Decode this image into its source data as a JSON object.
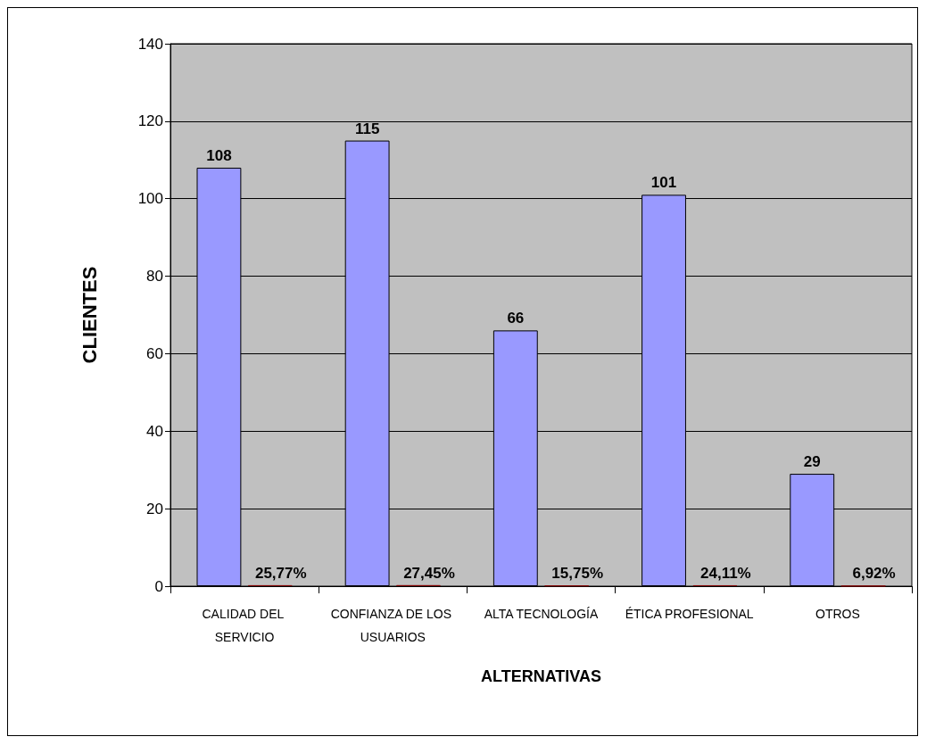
{
  "chart_data": {
    "type": "bar",
    "xlabel": "ALTERNATIVAS",
    "ylabel": "CLIENTES",
    "categories": [
      "CALIDAD DEL SERVICIO",
      "CONFIANZA DE LOS USUARIOS",
      "ALTA TECNOLOGÍA",
      "ÉTICA PROFESIONAL",
      "OTROS"
    ],
    "series": [
      {
        "color": "#9999ff",
        "values": [
          108,
          115,
          66,
          101,
          29
        ],
        "data_labels": true
      },
      {
        "color": "#800000",
        "values": [
          0.2577,
          0.2745,
          0.1575,
          0.2411,
          0.0692
        ],
        "value_labels": [
          "25,77%",
          "27,45%",
          "15,75%",
          "24,11%",
          "6,92%"
        ]
      }
    ],
    "ylim": [
      0,
      140
    ],
    "yticks": [
      0,
      20,
      40,
      60,
      80,
      100,
      120,
      140
    ],
    "grid": "y"
  }
}
